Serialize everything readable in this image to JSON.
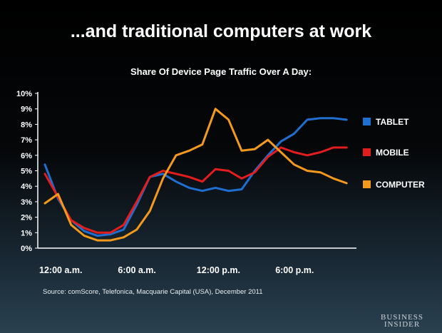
{
  "slide": {
    "headline": "...and traditional computers at work",
    "source": "Source: comScore, Telefonica, Macquarie Capital (USA), December 2011",
    "brand_line1": "BUSINESS",
    "brand_line2": "INSIDER"
  },
  "colors": {
    "tablet": "#1f6fd1",
    "mobile": "#e31d1d",
    "computer": "#f39a1c",
    "axis": "#ffffff"
  },
  "chart_data": {
    "type": "line",
    "title": "Share Of Device Page Traffic Over A Day:",
    "ylim": [
      0,
      10
    ],
    "y_ticks": [
      "0%",
      "1%",
      "2%",
      "3%",
      "4%",
      "5%",
      "6%",
      "7%",
      "8%",
      "9%",
      "10%"
    ],
    "x_ticks": [
      {
        "label": "12:00 a.m.",
        "hour": 0
      },
      {
        "label": "6:00 a.m.",
        "hour": 6
      },
      {
        "label": "12:00 p.m.",
        "hour": 12
      },
      {
        "label": "6:00 p.m.",
        "hour": 18
      }
    ],
    "x_hours": [
      0,
      1,
      2,
      3,
      4,
      5,
      6,
      7,
      8,
      9,
      10,
      11,
      12,
      13,
      14,
      15,
      16,
      17,
      18,
      19,
      20,
      21,
      22,
      23
    ],
    "legend_position": "right",
    "series": [
      {
        "name": "TABLET",
        "color": "#1f6fd1",
        "values": [
          5.4,
          3.2,
          1.8,
          1.1,
          0.8,
          0.9,
          1.2,
          2.8,
          4.6,
          4.8,
          4.3,
          3.9,
          3.7,
          3.9,
          3.7,
          3.8,
          5.0,
          6.0,
          6.9,
          7.4,
          8.3,
          8.4,
          8.4,
          8.3
        ]
      },
      {
        "name": "MOBILE",
        "color": "#e31d1d",
        "values": [
          4.8,
          3.3,
          1.8,
          1.3,
          1.0,
          1.0,
          1.5,
          3.0,
          4.6,
          5.0,
          4.8,
          4.6,
          4.3,
          5.1,
          5.0,
          4.5,
          4.9,
          5.9,
          6.5,
          6.2,
          6.0,
          6.2,
          6.5,
          6.5
        ]
      },
      {
        "name": "COMPUTER",
        "color": "#f39a1c",
        "values": [
          2.9,
          3.5,
          1.5,
          0.8,
          0.5,
          0.5,
          0.7,
          1.2,
          2.4,
          4.5,
          6.0,
          6.3,
          6.7,
          9.0,
          8.3,
          6.3,
          6.4,
          7.0,
          6.2,
          5.4,
          5.0,
          4.9,
          4.5,
          4.2
        ]
      }
    ]
  }
}
